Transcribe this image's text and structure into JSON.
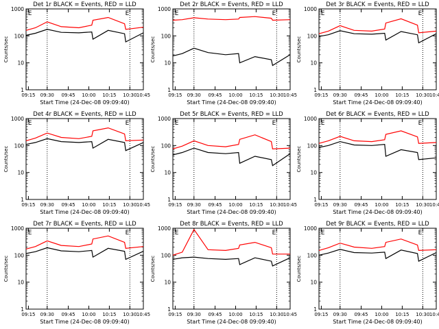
{
  "chart_data": [
    {
      "type": "line",
      "title": "Det 1r BLACK = Events, RED = LLD",
      "xlabel": "Start Time (24-Dec-08 09:09:40)",
      "ylabel": "Counts/sec",
      "yscale": "log",
      "ylim": [
        1,
        1000
      ],
      "x_ticks": [
        "09:15",
        "09:30",
        "09:45",
        "10:00",
        "10:15",
        "10:30",
        "10:45"
      ],
      "y_ticks": [
        "1",
        "10",
        "100",
        "1000"
      ],
      "markers": [
        "E",
        "E"
      ],
      "series": [
        {
          "color": "#000000",
          "values": [
            105,
            125,
            175,
            135,
            130,
            140,
            75,
            160,
            120,
            60,
            130
          ]
        },
        {
          "color": "#ff0000",
          "values": [
            160,
            200,
            330,
            220,
            200,
            250,
            380,
            480,
            280,
            175,
            210
          ]
        }
      ]
    },
    {
      "type": "line",
      "title": "Det 2r BLACK = Events, RED = LLD",
      "xlabel": "Start Time (24-Dec-08 09:09:40)",
      "ylabel": "Counts/sec",
      "yscale": "log",
      "ylim": [
        1,
        1000
      ],
      "x_ticks": [
        "09:15",
        "09:30",
        "09:45",
        "10:00",
        "10:15",
        "10:30",
        "10:45"
      ],
      "y_ticks": [
        "1",
        "10",
        "100",
        "1000"
      ],
      "markers": [
        "E",
        "E"
      ],
      "series": [
        {
          "color": "#000000",
          "values": [
            18,
            22,
            35,
            24,
            20,
            22,
            10,
            17,
            13,
            8,
            20
          ]
        },
        {
          "color": "#ff0000",
          "values": [
            380,
            400,
            470,
            420,
            400,
            420,
            480,
            520,
            450,
            380,
            400
          ]
        }
      ]
    },
    {
      "type": "line",
      "title": "Det 3r BLACK = Events, RED = LLD",
      "xlabel": "Start Time (24-Dec-08 09:09:40)",
      "ylabel": "Counts/sec",
      "yscale": "log",
      "ylim": [
        1,
        1000
      ],
      "x_ticks": [
        "09:15",
        "09:30",
        "09:45",
        "10:00",
        "10:15",
        "10:30",
        "10:45"
      ],
      "y_ticks": [
        "1",
        "10",
        "100",
        "1000"
      ],
      "markers": [
        "E",
        "E"
      ],
      "series": [
        {
          "color": "#000000",
          "values": [
            95,
            110,
            155,
            120,
            115,
            125,
            70,
            145,
            110,
            55,
            120
          ]
        },
        {
          "color": "#ff0000",
          "values": [
            120,
            150,
            240,
            160,
            150,
            180,
            300,
            430,
            250,
            130,
            150
          ]
        }
      ]
    },
    {
      "type": "line",
      "title": "Det 4r BLACK = Events, RED = LLD",
      "xlabel": "Start Time (24-Dec-08 09:09:40)",
      "ylabel": "Counts/sec",
      "yscale": "log",
      "ylim": [
        1,
        1000
      ],
      "x_ticks": [
        "09:15",
        "09:30",
        "09:45",
        "10:00",
        "10:15",
        "10:30",
        "10:45"
      ],
      "y_ticks": [
        "1",
        "10",
        "100",
        "1000"
      ],
      "markers": [
        "E",
        "E"
      ],
      "series": [
        {
          "color": "#000000",
          "values": [
            110,
            130,
            180,
            140,
            130,
            140,
            80,
            170,
            130,
            65,
            130
          ]
        },
        {
          "color": "#ff0000",
          "values": [
            150,
            190,
            290,
            200,
            180,
            220,
            350,
            450,
            270,
            150,
            160
          ]
        }
      ]
    },
    {
      "type": "line",
      "title": "Det 5r BLACK = Events, RED = LLD",
      "xlabel": "Start Time (24-Dec-08 09:09:40)",
      "ylabel": "Counts/sec",
      "yscale": "log",
      "ylim": [
        1,
        1000
      ],
      "x_ticks": [
        "09:15",
        "09:30",
        "09:45",
        "10:00",
        "10:15",
        "10:30",
        "10:45"
      ],
      "y_ticks": [
        "1",
        "10",
        "100",
        "1000"
      ],
      "markers": [
        "E",
        "E"
      ],
      "series": [
        {
          "color": "#000000",
          "values": [
            45,
            55,
            80,
            55,
            50,
            55,
            22,
            40,
            30,
            18,
            50
          ]
        },
        {
          "color": "#ff0000",
          "values": [
            75,
            95,
            150,
            100,
            90,
            110,
            170,
            250,
            140,
            75,
            80
          ]
        }
      ]
    },
    {
      "type": "line",
      "title": "Det 6r BLACK = Events, RED = LLD",
      "xlabel": "Start Time (24-Dec-08 09:09:40)",
      "ylabel": "Counts/sec",
      "yscale": "log",
      "ylim": [
        1,
        1000
      ],
      "x_ticks": [
        "09:15",
        "09:30",
        "09:45",
        "10:00",
        "10:15",
        "10:30",
        "10:45"
      ],
      "y_ticks": [
        "1",
        "10",
        "100",
        "1000"
      ],
      "markers": [
        "E",
        "E"
      ],
      "series": [
        {
          "color": "#000000",
          "values": [
            85,
            100,
            140,
            105,
            100,
            110,
            40,
            70,
            55,
            30,
            35
          ]
        },
        {
          "color": "#ff0000",
          "values": [
            120,
            150,
            220,
            150,
            140,
            165,
            260,
            350,
            210,
            120,
            130
          ]
        }
      ]
    },
    {
      "type": "line",
      "title": "Det 7r BLACK = Events, RED = LLD",
      "xlabel": "Start Time (24-Dec-08 09:09:40)",
      "ylabel": "Counts/sec",
      "yscale": "log",
      "ylim": [
        1,
        1000
      ],
      "x_ticks": [
        "09:15",
        "09:30",
        "09:45",
        "10:00",
        "10:15",
        "10:30",
        "10:45"
      ],
      "y_ticks": [
        "1",
        "10",
        "100",
        "1000"
      ],
      "markers": [
        "E",
        "E"
      ],
      "series": [
        {
          "color": "#000000",
          "values": [
            115,
            135,
            190,
            145,
            135,
            150,
            85,
            180,
            140,
            70,
            140
          ]
        },
        {
          "color": "#ff0000",
          "values": [
            170,
            210,
            340,
            230,
            210,
            260,
            400,
            520,
            300,
            180,
            210
          ]
        }
      ]
    },
    {
      "type": "line",
      "title": "Det 8r BLACK = Events, RED = LLD",
      "xlabel": "Start Time (24-Dec-08 09:09:40)",
      "ylabel": "Counts/sec",
      "yscale": "log",
      "ylim": [
        1,
        1000
      ],
      "x_ticks": [
        "09:15",
        "09:30",
        "09:45",
        "10:00",
        "10:15",
        "10:30",
        "10:45"
      ],
      "y_ticks": [
        "1",
        "10",
        "100",
        "1000"
      ],
      "markers": [
        "E",
        "E"
      ],
      "series": [
        {
          "color": "#000000",
          "values": [
            70,
            80,
            85,
            75,
            70,
            75,
            45,
            80,
            60,
            40,
            80
          ]
        },
        {
          "color": "#ff0000",
          "values": [
            100,
            130,
            900,
            160,
            150,
            180,
            240,
            300,
            190,
            110,
            110
          ]
        }
      ]
    },
    {
      "type": "line",
      "title": "Det 9r BLACK = Events, RED = LLD",
      "xlabel": "Start Time (24-Dec-08 09:09:40)",
      "ylabel": "Counts/sec",
      "yscale": "log",
      "ylim": [
        1,
        1000
      ],
      "x_ticks": [
        "09:15",
        "09:30",
        "09:45",
        "10:00",
        "10:15",
        "10:30",
        "10:45"
      ],
      "y_ticks": [
        "1",
        "10",
        "100",
        "1000"
      ],
      "markers": [
        "E",
        "E"
      ],
      "series": [
        {
          "color": "#000000",
          "values": [
            100,
            120,
            165,
            125,
            120,
            130,
            75,
            155,
            115,
            60,
            125
          ]
        },
        {
          "color": "#ff0000",
          "values": [
            150,
            190,
            280,
            200,
            180,
            210,
            300,
            400,
            240,
            150,
            160
          ]
        }
      ]
    }
  ]
}
